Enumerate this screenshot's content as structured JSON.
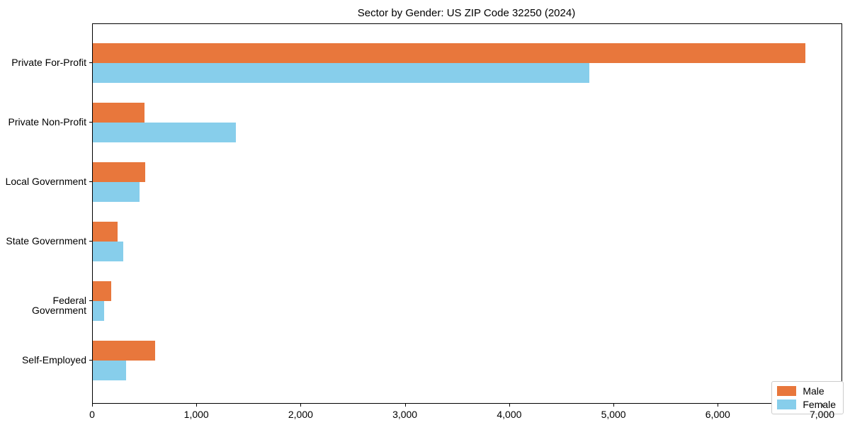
{
  "chart_data": {
    "type": "bar",
    "orientation": "horizontal",
    "title": "Sector by Gender: US ZIP Code 32250 (2024)",
    "categories": [
      "Private For-Profit",
      "Private Non-Profit",
      "Local Government",
      "State Government",
      "Federal Government",
      "Self-Employed"
    ],
    "series": [
      {
        "name": "Male",
        "color": "#E8773C",
        "values": [
          6830,
          495,
          500,
          235,
          178,
          600
        ]
      },
      {
        "name": "Female",
        "color": "#87CEEB",
        "values": [
          4760,
          1370,
          445,
          290,
          110,
          318
        ]
      }
    ],
    "xlabel": "",
    "ylabel": "",
    "xlim": [
      0,
      7180
    ],
    "xticks": [
      0,
      1000,
      2000,
      3000,
      4000,
      5000,
      6000,
      7000
    ],
    "xtick_labels": [
      "0",
      "1,000",
      "2,000",
      "3,000",
      "4,000",
      "5,000",
      "6,000",
      "7,000"
    ],
    "grid": false,
    "legend": {
      "position": "lower right",
      "entries": [
        "Male",
        "Female"
      ]
    },
    "colors": {
      "axis": "#000000",
      "background": "#ffffff",
      "legend_border": "#cccccc"
    }
  }
}
